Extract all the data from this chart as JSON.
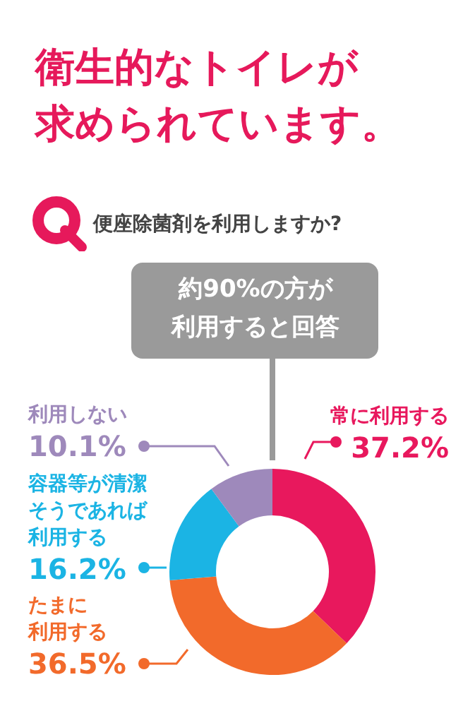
{
  "chart_data": {
    "type": "donut",
    "title": "衛生的なトイレが求められています。",
    "subtitle": "便座除菌剤を利用しますか?",
    "annotations": [
      "約90%の方が利用すると回答"
    ],
    "categories": [
      "常に利用する",
      "たまに利用する",
      "容器等が清潔そうであれば利用する",
      "利用しない"
    ],
    "values": [
      37.2,
      36.5,
      16.2,
      10.1
    ],
    "colors": [
      "#e8185d",
      "#f26a2b",
      "#1bb4e4",
      "#9e89bb"
    ],
    "value_labels": [
      "37.2%",
      "36.5%",
      "16.2%",
      "10.1%"
    ]
  }
}
